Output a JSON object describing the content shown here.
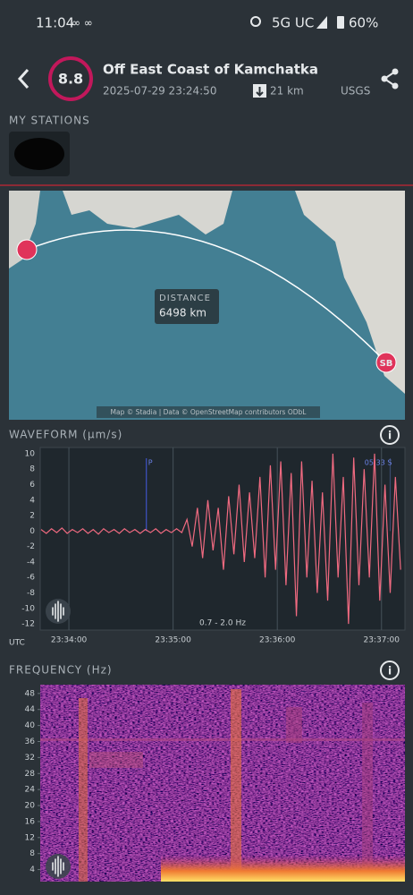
{
  "status_bar": {
    "time": "11:04",
    "network": "5G UC",
    "battery": "60%"
  },
  "header": {
    "magnitude": "8.8",
    "title": "Off East Coast of Kamchatka",
    "datetime": "2025-07-29 23:24:50",
    "depth": "21 km",
    "source": "USGS"
  },
  "stations": {
    "title": "MY STATIONS"
  },
  "map": {
    "distance_label": "DISTANCE",
    "distance": "6498 km",
    "station_code": "SB",
    "attribution": "Map © Stadia | Data © OpenStreetMap contributors ODbL"
  },
  "chart_data": [
    {
      "type": "line",
      "title": "WAVEFORM (μm/s)",
      "timezone_label": "UTC",
      "filter_label": "0.7 - 2.0 Hz",
      "x": [
        -16,
        -13,
        -10,
        -7,
        -4,
        -1,
        2,
        5,
        8,
        11,
        14,
        17,
        20,
        23,
        26,
        29,
        32,
        35,
        38,
        41,
        44,
        47,
        50,
        53,
        56,
        59,
        62,
        65,
        68,
        71,
        74,
        77,
        80,
        83,
        86,
        89,
        92,
        95,
        98,
        101,
        104,
        107,
        110,
        113,
        116,
        119,
        122,
        125,
        128,
        131,
        134,
        137,
        140,
        143,
        146,
        149,
        152,
        155,
        158,
        161,
        164,
        167,
        170,
        173,
        176,
        179,
        182,
        185,
        188,
        191
      ],
      "series": [
        {
          "color": "#f06a80",
          "values": [
            0.2,
            -0.3,
            0.3,
            -0.2,
            0.4,
            -0.3,
            0.2,
            -0.2,
            0.3,
            -0.3,
            0.2,
            -0.4,
            0.3,
            -0.2,
            0.2,
            -0.3,
            0.3,
            -0.2,
            0.2,
            -0.3,
            0.2,
            -0.2,
            0.3,
            -0.3,
            0.2,
            -0.2,
            0.3,
            -0.2,
            1.5,
            -2,
            3,
            -3.5,
            4,
            -2.5,
            3,
            -5,
            4.5,
            -3,
            6,
            -4,
            5,
            -3.5,
            7,
            -6,
            8.5,
            -5,
            9,
            -7,
            7.5,
            -11,
            9,
            -6,
            6.5,
            -8,
            5,
            -9,
            10,
            -6,
            7,
            -12,
            9.5,
            -7,
            8,
            -6,
            10,
            -9,
            6,
            -8,
            7,
            -5
          ]
        }
      ],
      "xlim": [
        -16.5,
        193.5
      ],
      "ylim": [
        -12.8,
        10.8
      ],
      "xticks": [
        {
          "value": 0,
          "label": "23:34:00"
        },
        {
          "value": 60,
          "label": "23:35:00"
        },
        {
          "value": 120,
          "label": "23:36:00"
        },
        {
          "value": 180,
          "label": "23:37:00"
        }
      ],
      "yticks": [
        10,
        8,
        6,
        4,
        2,
        0,
        -2,
        -4,
        -6,
        -8,
        -10,
        -12
      ],
      "annotations": [
        {
          "x": 44.6,
          "label": "P"
        },
        {
          "x": 185,
          "label": "05:33 S"
        }
      ]
    },
    {
      "type": "heatmap",
      "title": "FREQUENCY (Hz)",
      "ylim": [
        1,
        50.2
      ],
      "yticks": [
        48,
        44,
        40,
        36,
        32,
        28,
        24,
        20,
        16,
        12,
        8,
        4
      ]
    }
  ]
}
